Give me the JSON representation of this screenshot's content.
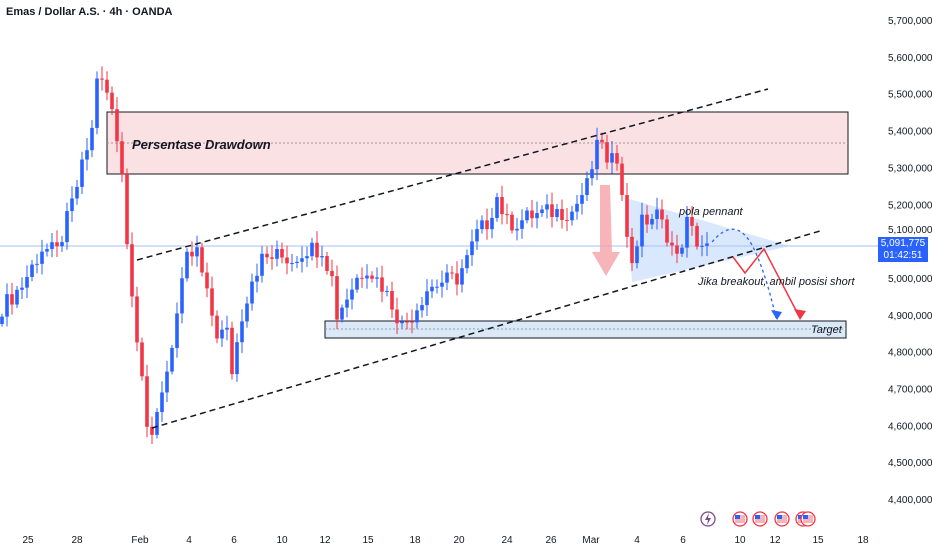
{
  "header": {
    "title": "Emas / Dollar A.S. · 4h · OANDA"
  },
  "price_tag": {
    "price": "5,091,775",
    "countdown": "01:42:51"
  },
  "colors": {
    "up": "#2962ff",
    "down": "#f23645",
    "accent": "#2962ff"
  },
  "annotations": {
    "drawdown_label": "Persentase Drawdown",
    "pennant_label": "pola pennant",
    "breakout_label": "Jika breakout, ambil posisi short",
    "target_label": "Target"
  },
  "events": {
    "icons": [
      "lightning-icon",
      "us-flag-icon",
      "us-flag-icon",
      "us-flag-icon",
      "us-flag-icon"
    ]
  },
  "chart_data": {
    "type": "candlestick",
    "title": "Emas / Dollar A.S. · 4h · OANDA",
    "ylim": [
      4400000,
      5700000
    ],
    "y_ticks": [
      "5,700,000",
      "5,600,000",
      "5,500,000",
      "5,400,000",
      "5,300,000",
      "5,200,000",
      "5,100,000",
      "5,000,000",
      "4,900,000",
      "4,800,000",
      "4,700,000",
      "4,600,000",
      "4,500,000",
      "4,400,000"
    ],
    "x_ticks": [
      "25",
      "28",
      "Feb",
      "4",
      "6",
      "10",
      "12",
      "15",
      "18",
      "20",
      "24",
      "26",
      "Mar",
      "4",
      "6",
      "10",
      "12",
      "15",
      "18"
    ],
    "close_keypoints": [
      [
        0,
        4920000
      ],
      [
        4,
        4980000
      ],
      [
        8,
        5080000
      ],
      [
        11,
        5070000
      ],
      [
        14,
        5200000
      ],
      [
        16,
        5300000
      ],
      [
        18,
        5400000
      ],
      [
        19,
        5550000
      ],
      [
        21,
        5500000
      ],
      [
        22,
        5450000
      ],
      [
        24,
        5300000
      ],
      [
        25,
        5100000
      ],
      [
        26,
        4950000
      ],
      [
        28,
        4750000
      ],
      [
        29,
        4600000
      ],
      [
        30,
        4550000
      ],
      [
        32,
        4700000
      ],
      [
        33,
        4750000
      ],
      [
        35,
        4900000
      ],
      [
        37,
        5050000
      ],
      [
        39,
        5070000
      ],
      [
        41,
        4950000
      ],
      [
        43,
        4850000
      ],
      [
        45,
        4850000
      ],
      [
        46,
        4750000
      ],
      [
        48,
        4900000
      ],
      [
        50,
        5000000
      ],
      [
        52,
        5050000
      ],
      [
        55,
        5060000
      ],
      [
        58,
        5050000
      ],
      [
        61,
        5080000
      ],
      [
        64,
        5080000
      ],
      [
        66,
        5000000
      ],
      [
        67,
        4900000
      ],
      [
        69,
        4950000
      ],
      [
        71,
        5000000
      ],
      [
        73,
        5030000
      ],
      [
        76,
        4980000
      ],
      [
        78,
        4930000
      ],
      [
        80,
        4870000
      ],
      [
        82,
        4900000
      ],
      [
        85,
        4970000
      ],
      [
        88,
        4990000
      ],
      [
        91,
        5000000
      ],
      [
        93,
        5050000
      ],
      [
        95,
        5120000
      ],
      [
        97,
        5150000
      ],
      [
        99,
        5220000
      ],
      [
        101,
        5150000
      ],
      [
        103,
        5150000
      ],
      [
        106,
        5170000
      ],
      [
        110,
        5180000
      ],
      [
        114,
        5180000
      ],
      [
        117,
        5250000
      ],
      [
        119,
        5350000
      ],
      [
        120,
        5380000
      ],
      [
        121,
        5300000
      ],
      [
        123,
        5330000
      ],
      [
        124,
        5250000
      ],
      [
        125,
        5100000
      ],
      [
        126,
        5050000
      ],
      [
        128,
        5150000
      ],
      [
        131,
        5170000
      ],
      [
        133,
        5120000
      ],
      [
        135,
        5050000
      ],
      [
        137,
        5150000
      ],
      [
        139,
        5100000
      ],
      [
        141,
        5080000
      ]
    ],
    "current_price": 5091775
  }
}
